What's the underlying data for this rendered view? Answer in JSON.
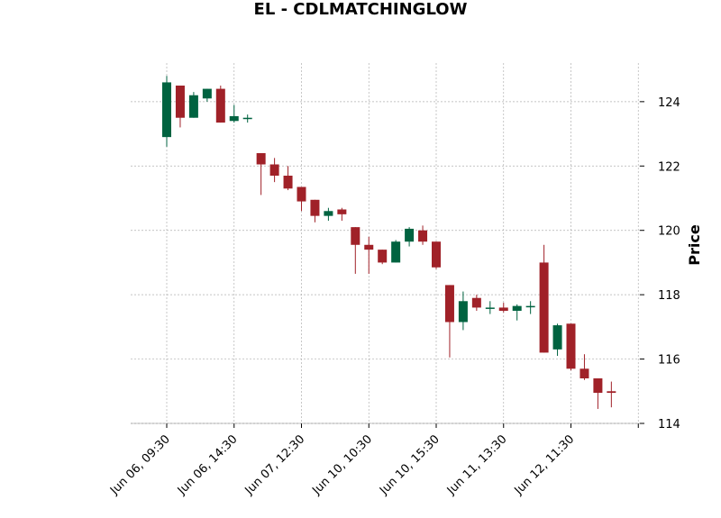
{
  "chart_data": {
    "type": "candlestick",
    "title": "EL - CDLMATCHINGLOW",
    "xlabel": "",
    "ylabel": "Price",
    "ylim": [
      114,
      125.2
    ],
    "y_ticks": [
      114,
      116,
      118,
      120,
      122,
      124
    ],
    "x_tick_labels": [
      "Jun 06, 09:30",
      "Jun 06, 14:30",
      "Jun 07, 12:30",
      "Jun 10, 10:30",
      "Jun 10, 15:30",
      "Jun 11, 13:30",
      "Jun 12, 11:30"
    ],
    "x_tick_index": [
      0,
      5,
      10,
      15,
      20,
      25,
      30
    ],
    "grid": true,
    "colors": {
      "up": "#006340",
      "down": "#a02128",
      "grid": "#b0b0b0"
    },
    "candles": [
      {
        "o": 122.9,
        "h": 124.8,
        "l": 122.6,
        "c": 124.6
      },
      {
        "o": 124.5,
        "h": 124.5,
        "l": 123.2,
        "c": 123.5
      },
      {
        "o": 123.5,
        "h": 124.3,
        "l": 123.5,
        "c": 124.2
      },
      {
        "o": 124.1,
        "h": 124.4,
        "l": 124.0,
        "c": 124.4
      },
      {
        "o": 124.4,
        "h": 124.5,
        "l": 123.35,
        "c": 123.35
      },
      {
        "o": 123.4,
        "h": 123.9,
        "l": 123.35,
        "c": 123.55
      },
      {
        "o": 123.5,
        "h": 123.6,
        "l": 123.35,
        "c": 123.5
      },
      {
        "o": 122.4,
        "h": 122.4,
        "l": 121.1,
        "c": 122.05
      },
      {
        "o": 122.05,
        "h": 122.25,
        "l": 121.5,
        "c": 121.7
      },
      {
        "o": 121.7,
        "h": 122.0,
        "l": 121.25,
        "c": 121.3
      },
      {
        "o": 121.35,
        "h": 121.35,
        "l": 120.6,
        "c": 120.9
      },
      {
        "o": 120.95,
        "h": 120.95,
        "l": 120.25,
        "c": 120.45
      },
      {
        "o": 120.45,
        "h": 120.7,
        "l": 120.3,
        "c": 120.6
      },
      {
        "o": 120.65,
        "h": 120.7,
        "l": 120.3,
        "c": 120.5
      },
      {
        "o": 120.1,
        "h": 120.1,
        "l": 118.65,
        "c": 119.55
      },
      {
        "o": 119.55,
        "h": 119.8,
        "l": 118.65,
        "c": 119.4
      },
      {
        "o": 119.4,
        "h": 119.4,
        "l": 118.95,
        "c": 119.0
      },
      {
        "o": 119.0,
        "h": 119.7,
        "l": 119.0,
        "c": 119.65
      },
      {
        "o": 119.65,
        "h": 120.1,
        "l": 119.5,
        "c": 120.05
      },
      {
        "o": 120.0,
        "h": 120.15,
        "l": 119.55,
        "c": 119.65
      },
      {
        "o": 119.65,
        "h": 119.65,
        "l": 118.8,
        "c": 118.85
      },
      {
        "o": 118.3,
        "h": 118.3,
        "l": 116.05,
        "c": 117.15
      },
      {
        "o": 117.15,
        "h": 118.1,
        "l": 116.9,
        "c": 117.8
      },
      {
        "o": 117.9,
        "h": 118.0,
        "l": 117.5,
        "c": 117.6
      },
      {
        "o": 117.6,
        "h": 117.8,
        "l": 117.4,
        "c": 117.6
      },
      {
        "o": 117.6,
        "h": 117.75,
        "l": 117.45,
        "c": 117.5
      },
      {
        "o": 117.5,
        "h": 117.7,
        "l": 117.2,
        "c": 117.65
      },
      {
        "o": 117.65,
        "h": 117.8,
        "l": 117.4,
        "c": 117.65
      },
      {
        "o": 119.0,
        "h": 119.55,
        "l": 116.2,
        "c": 116.2
      },
      {
        "o": 116.3,
        "h": 117.1,
        "l": 116.1,
        "c": 117.05
      },
      {
        "o": 117.1,
        "h": 117.1,
        "l": 115.65,
        "c": 115.7
      },
      {
        "o": 115.7,
        "h": 116.15,
        "l": 115.35,
        "c": 115.4
      },
      {
        "o": 115.4,
        "h": 115.4,
        "l": 114.45,
        "c": 114.95
      },
      {
        "o": 115.0,
        "h": 115.3,
        "l": 114.5,
        "c": 114.95
      }
    ]
  }
}
